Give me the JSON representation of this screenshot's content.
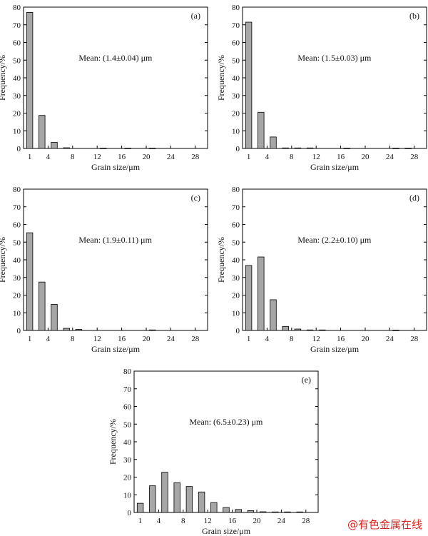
{
  "chart_data": [
    {
      "type": "bar",
      "panel_label": "(a)",
      "annotation": "Mean: (1.4±0.04) μm",
      "xlabel": "Grain size/μm",
      "ylabel": "Frequency/%",
      "ylim": [
        0,
        80
      ],
      "yticks": [
        0,
        10,
        20,
        30,
        40,
        50,
        60,
        70,
        80
      ],
      "xlim": [
        0,
        30
      ],
      "xticks": [
        1,
        4,
        8,
        12,
        16,
        20,
        24,
        28
      ],
      "bar_width": 1,
      "x": [
        1,
        3,
        5,
        7,
        9,
        11,
        13,
        15,
        17,
        19,
        21,
        23,
        25,
        27
      ],
      "values": [
        77,
        18.7,
        3.5,
        0.4,
        0,
        0,
        0.2,
        0,
        0.2,
        0,
        0.2,
        0,
        0,
        0
      ]
    },
    {
      "type": "bar",
      "panel_label": "(b)",
      "annotation": "Mean: (1.5±0.03) μm",
      "xlabel": "Grain size/μm",
      "ylabel": "Frequency/%",
      "ylim": [
        0,
        80
      ],
      "yticks": [
        0,
        10,
        20,
        30,
        40,
        50,
        60,
        70,
        80
      ],
      "xlim": [
        0,
        30
      ],
      "xticks": [
        1,
        4,
        8,
        12,
        16,
        20,
        24,
        28
      ],
      "bar_width": 1,
      "x": [
        1,
        3,
        5,
        7,
        9,
        11,
        13,
        15,
        17,
        19,
        21,
        23,
        25,
        27
      ],
      "values": [
        71.5,
        20.5,
        6.5,
        0.3,
        0.3,
        0.3,
        0,
        0,
        0.2,
        0,
        0,
        0,
        0.2,
        0.2
      ]
    },
    {
      "type": "bar",
      "panel_label": "(c)",
      "annotation": "Mean: (1.9±0.11) μm",
      "xlabel": "Grain size/μm",
      "ylabel": "Frequency/%",
      "ylim": [
        0,
        80
      ],
      "yticks": [
        0,
        10,
        20,
        30,
        40,
        50,
        60,
        70,
        80
      ],
      "xlim": [
        0,
        30
      ],
      "xticks": [
        1,
        4,
        8,
        12,
        16,
        20,
        24,
        28
      ],
      "bar_width": 1,
      "x": [
        1,
        3,
        5,
        7,
        9,
        11,
        13,
        15,
        17,
        19,
        21,
        23,
        25,
        27
      ],
      "values": [
        55.3,
        27.4,
        14.8,
        1.2,
        0.6,
        0,
        0,
        0,
        0,
        0,
        0.3,
        0,
        0,
        0
      ]
    },
    {
      "type": "bar",
      "panel_label": "(d)",
      "annotation": "Mean: (2.2±0.10) μm",
      "xlabel": "Grain size/μm",
      "ylabel": "Frequency/%",
      "ylim": [
        0,
        80
      ],
      "yticks": [
        0,
        10,
        20,
        30,
        40,
        50,
        60,
        70,
        80
      ],
      "xlim": [
        0,
        30
      ],
      "xticks": [
        1,
        4,
        8,
        12,
        16,
        20,
        24,
        28
      ],
      "bar_width": 1,
      "x": [
        1,
        3,
        5,
        7,
        9,
        11,
        13,
        15,
        17,
        19,
        21,
        23,
        25,
        27
      ],
      "values": [
        36.8,
        41.6,
        17.4,
        2.3,
        0.8,
        0.3,
        0.3,
        0,
        0,
        0,
        0,
        0,
        0.2,
        0
      ]
    },
    {
      "type": "bar",
      "panel_label": "(e)",
      "annotation": "Mean: (6.5±0.23) μm",
      "xlabel": "Grain size/μm",
      "ylabel": "Frequency/%",
      "ylim": [
        0,
        80
      ],
      "yticks": [
        0,
        10,
        20,
        30,
        40,
        50,
        60,
        70,
        80
      ],
      "xlim": [
        0,
        30
      ],
      "xticks": [
        1,
        4,
        8,
        12,
        16,
        20,
        24,
        28
      ],
      "bar_width": 1,
      "x": [
        1,
        3,
        5,
        7,
        9,
        11,
        13,
        15,
        17,
        19,
        21,
        23,
        25,
        27
      ],
      "values": [
        5.2,
        15.1,
        22.8,
        16.8,
        14.7,
        11.6,
        5.6,
        2.8,
        1.7,
        1,
        0.4,
        0.3,
        0.3,
        0.3
      ]
    }
  ],
  "watermark": "@有色金属在线"
}
